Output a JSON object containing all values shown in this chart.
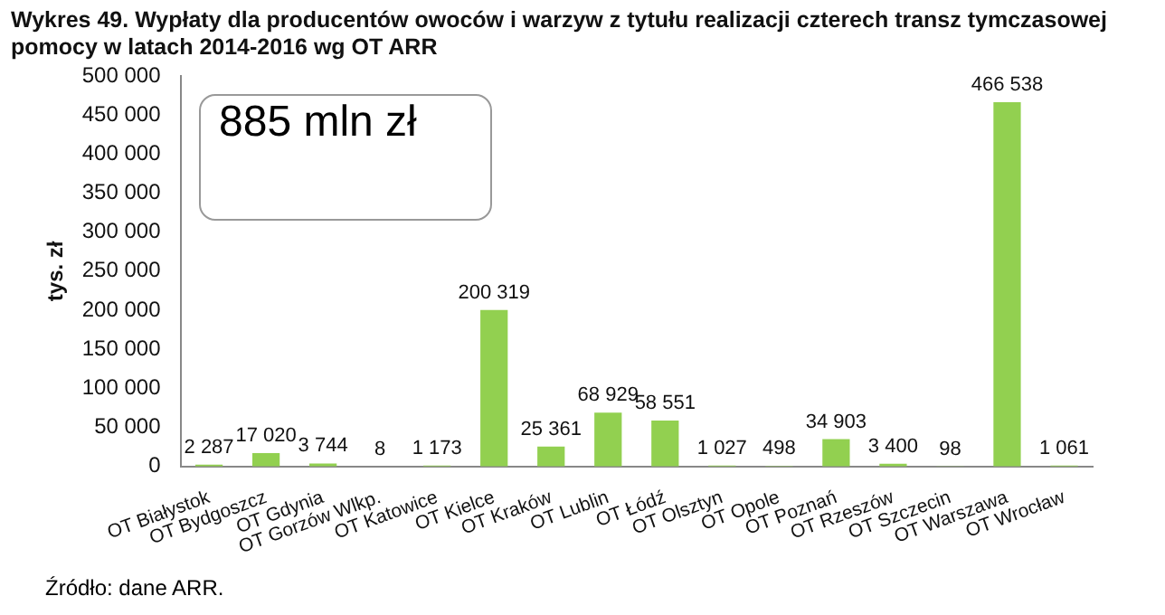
{
  "chart_data": {
    "type": "bar",
    "title": "Wykres 49. Wypłaty dla producentów owoców i warzyw z tytułu realizacji czterech transz tymczasowej pomocy w latach 2014-2016 wg OT ARR",
    "ylabel": "tys. zł",
    "categories": [
      "OT Białystok",
      "OT Bydgoszcz",
      "OT Gdynia",
      "OT Gorzów Wlkp.",
      "OT Katowice",
      "OT Kielce",
      "OT Kraków",
      "OT Lublin",
      "OT Łódź",
      "OT Olsztyn",
      "OT Opole",
      "OT Poznań",
      "OT Rzeszów",
      "OT Szczecin",
      "OT Warszawa",
      "OT Wrocław"
    ],
    "values": [
      2287,
      17020,
      3744,
      8,
      1173,
      200319,
      25361,
      68929,
      58551,
      1027,
      498,
      34903,
      3400,
      98,
      466538,
      1061
    ],
    "value_labels": [
      "2 287",
      "17 020",
      "3 744",
      "8",
      "1 173",
      "200 319",
      "25 361",
      "68 929",
      "58 551",
      "1 027",
      "498",
      "34 903",
      "3 400",
      "98",
      "466 538",
      "1 061"
    ],
    "color": "#92d050",
    "ylim": [
      0,
      500000
    ],
    "yticks": [
      0,
      {
        "value": 50000,
        "label": "50 000"
      },
      {
        "value": 100000,
        "label": "100 000"
      },
      {
        "value": 150000,
        "label": "150 000"
      },
      {
        "value": 200000,
        "label": "200 000"
      },
      {
        "value": 250000,
        "label": "250 000"
      },
      {
        "value": 300000,
        "label": "300 000"
      },
      {
        "value": 350000,
        "label": "350 000"
      },
      {
        "value": 400000,
        "label": "400 000"
      },
      {
        "value": 450000,
        "label": "450 000"
      },
      {
        "value": 500000,
        "label": "500 000"
      }
    ],
    "grid": false,
    "legend": false,
    "annotations": [
      "885 mln zł",
      "Źródło: dane ARR."
    ]
  }
}
